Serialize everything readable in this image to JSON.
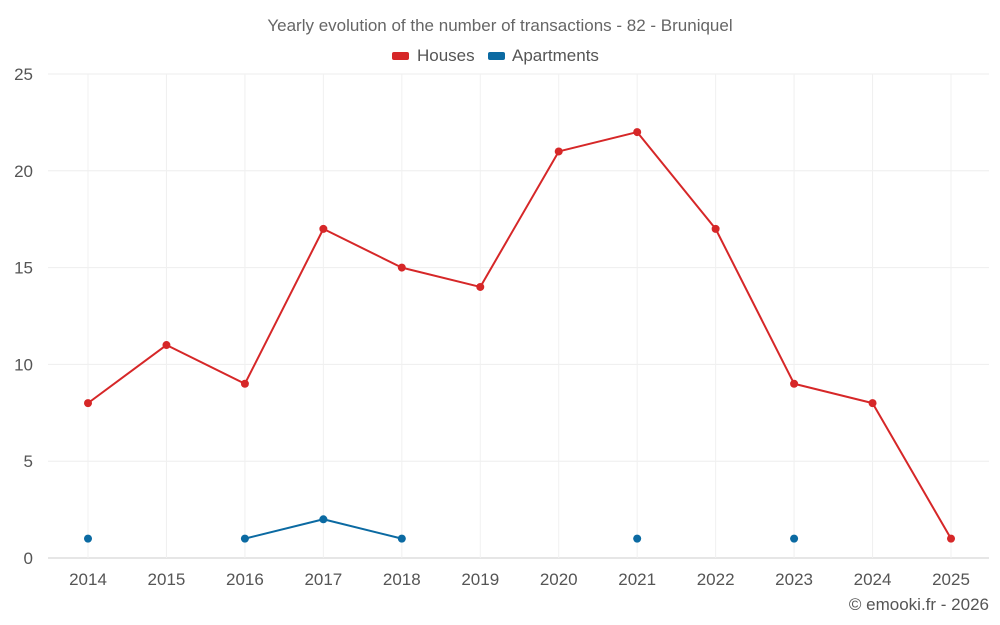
{
  "chart_data": {
    "type": "line",
    "title": "Yearly evolution of the number of transactions - 82 - Bruniquel",
    "credit": "© emooki.fr - 2026",
    "categories": [
      "2014",
      "2015",
      "2016",
      "2017",
      "2018",
      "2019",
      "2020",
      "2021",
      "2022",
      "2023",
      "2024",
      "2025"
    ],
    "yticks": [
      0,
      5,
      10,
      15,
      20,
      25
    ],
    "ylim": [
      0,
      25
    ],
    "grid": true,
    "legend": "top-center",
    "series": [
      {
        "name": "Houses",
        "color": "#d62728",
        "values": [
          8,
          11,
          9,
          17,
          15,
          14,
          21,
          22,
          17,
          9,
          8,
          1
        ]
      },
      {
        "name": "Apartments",
        "color": "#0b6aa2",
        "values": [
          1,
          null,
          1,
          2,
          1,
          null,
          null,
          1,
          null,
          1,
          null,
          null
        ]
      }
    ]
  }
}
